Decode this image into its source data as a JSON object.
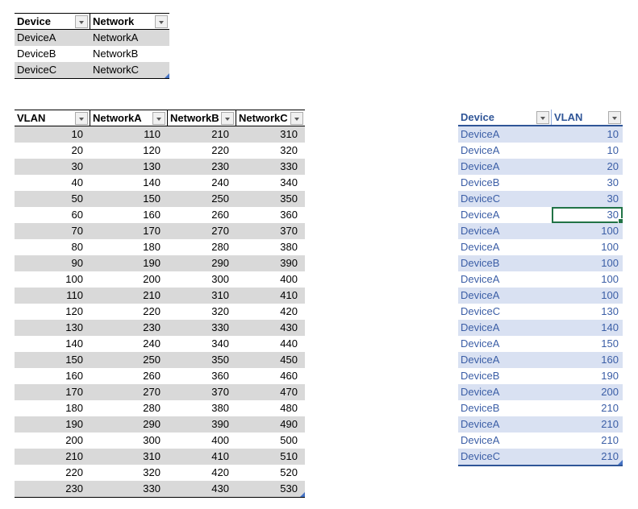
{
  "app": {
    "background": "#FFFFFF"
  },
  "icons": {
    "filter-dropdown-arrow": "▼",
    "fill-handle": "green-square",
    "table-resize-handle": "blue-corner-triangle"
  },
  "colors": {
    "gray_band": "#D9D9D9",
    "black_border": "#000000",
    "blue_band": "#D9E1F2",
    "blue_text": "#3B5EA6",
    "blue_header_text": "#2F5597",
    "blue_border": "#2F5597",
    "selection_green": "#217346",
    "resize_handle_blue": "#4472C4",
    "filter_button_bg": "#F0F0F0",
    "filter_button_border": "#ABABAB",
    "filter_arrow": "#595959"
  },
  "tables": [
    {
      "id": "device-network",
      "theme": "gray",
      "columns": [
        "Device",
        "Network"
      ],
      "rows": [
        [
          "DeviceA",
          "NetworkA"
        ],
        [
          "DeviceB",
          "NetworkB"
        ],
        [
          "DeviceC",
          "NetworkC"
        ]
      ]
    },
    {
      "id": "vlan-networks",
      "theme": "gray",
      "columns": [
        "VLAN",
        "NetworkA",
        "NetworkB",
        "NetworkC"
      ],
      "rows": [
        [
          10,
          110,
          210,
          310
        ],
        [
          20,
          120,
          220,
          320
        ],
        [
          30,
          130,
          230,
          330
        ],
        [
          40,
          140,
          240,
          340
        ],
        [
          50,
          150,
          250,
          350
        ],
        [
          60,
          160,
          260,
          360
        ],
        [
          70,
          170,
          270,
          370
        ],
        [
          80,
          180,
          280,
          380
        ],
        [
          90,
          190,
          290,
          390
        ],
        [
          100,
          200,
          300,
          400
        ],
        [
          110,
          210,
          310,
          410
        ],
        [
          120,
          220,
          320,
          420
        ],
        [
          130,
          230,
          330,
          430
        ],
        [
          140,
          240,
          340,
          440
        ],
        [
          150,
          250,
          350,
          450
        ],
        [
          160,
          260,
          360,
          460
        ],
        [
          170,
          270,
          370,
          470
        ],
        [
          180,
          280,
          380,
          480
        ],
        [
          190,
          290,
          390,
          490
        ],
        [
          200,
          300,
          400,
          500
        ],
        [
          210,
          310,
          410,
          510
        ],
        [
          220,
          320,
          420,
          520
        ],
        [
          230,
          330,
          430,
          530
        ]
      ]
    },
    {
      "id": "device-vlan",
      "theme": "blue",
      "columns": [
        "Device",
        "VLAN"
      ],
      "rows": [
        [
          "DeviceA",
          10
        ],
        [
          "DeviceA",
          10
        ],
        [
          "DeviceA",
          20
        ],
        [
          "DeviceB",
          30
        ],
        [
          "DeviceC",
          30
        ],
        [
          "DeviceA",
          30
        ],
        [
          "DeviceA",
          100
        ],
        [
          "DeviceA",
          100
        ],
        [
          "DeviceB",
          100
        ],
        [
          "DeviceA",
          100
        ],
        [
          "DeviceA",
          100
        ],
        [
          "DeviceC",
          130
        ],
        [
          "DeviceA",
          140
        ],
        [
          "DeviceA",
          150
        ],
        [
          "DeviceA",
          160
        ],
        [
          "DeviceB",
          190
        ],
        [
          "DeviceA",
          200
        ],
        [
          "DeviceB",
          210
        ],
        [
          "DeviceA",
          210
        ],
        [
          "DeviceA",
          210
        ],
        [
          "DeviceC",
          210
        ]
      ],
      "selected_cell": {
        "row_index": 5,
        "column_index": 1,
        "value": 30
      }
    }
  ]
}
